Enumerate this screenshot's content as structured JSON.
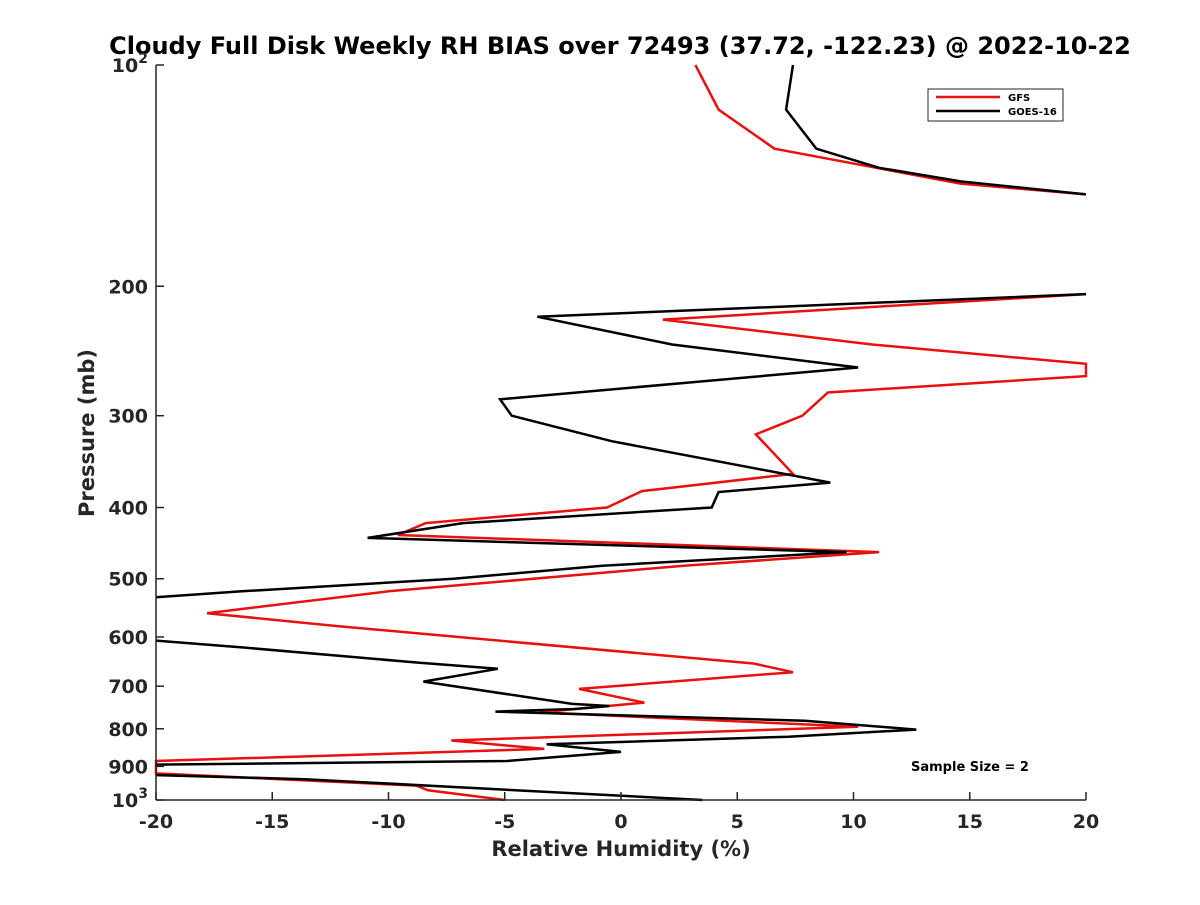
{
  "chart_data": {
    "type": "line",
    "title": "Cloudy Full Disk Weekly RH BIAS over 72493 (37.72, -122.23) @ 2022-10-22",
    "xlabel": "Relative Humidity (%)",
    "ylabel": "Pressure (mb)",
    "xlim": [
      -20,
      20
    ],
    "ylim": [
      100,
      1000
    ],
    "y_scale": "log",
    "y_reversed": true,
    "x_ticks": [
      "-20",
      "-15",
      "-10",
      "-5",
      "0",
      "5",
      "10",
      "15",
      "20"
    ],
    "y_ticks": [
      {
        "value": 100,
        "base": "10",
        "exp": "2"
      },
      {
        "value": 200,
        "label": "200"
      },
      {
        "value": 300,
        "label": "300"
      },
      {
        "value": 400,
        "label": "400"
      },
      {
        "value": 500,
        "label": "500"
      },
      {
        "value": 600,
        "label": "600"
      },
      {
        "value": 700,
        "label": "700"
      },
      {
        "value": 800,
        "label": "800"
      },
      {
        "value": 900,
        "label": "900"
      },
      {
        "value": 1000,
        "base": "10",
        "exp": "3"
      }
    ],
    "grid": false,
    "legend_position": "top-right",
    "annotation": "Sample Size = 2",
    "series": [
      {
        "name": "GFS",
        "color": "#e8110f",
        "points": [
          [
            3.2,
            100
          ],
          [
            4.2,
            115
          ],
          [
            6.6,
            130
          ],
          [
            14.6,
            145
          ],
          [
            20,
            150
          ],
          [
            null,
            null
          ],
          [
            20,
            205
          ],
          [
            1.8,
            222
          ],
          [
            10.8,
            240
          ],
          [
            20,
            255
          ],
          [
            20,
            265
          ],
          [
            8.9,
            279
          ],
          [
            7.8,
            300
          ],
          [
            5.8,
            318
          ],
          [
            7.4,
            360
          ],
          [
            0.9,
            380
          ],
          [
            -0.6,
            400
          ],
          [
            -8.4,
            420
          ],
          [
            -9.6,
            436
          ],
          [
            11.1,
            460
          ],
          [
            2.7,
            480
          ],
          [
            -10.0,
            520
          ],
          [
            -17.8,
            557
          ],
          [
            -12.2,
            580
          ],
          [
            5.7,
            652
          ],
          [
            7.4,
            670
          ],
          [
            -1.8,
            706
          ],
          [
            1.0,
            737
          ],
          [
            -3.5,
            760
          ],
          [
            10.2,
            795
          ],
          [
            -7.3,
            830
          ],
          [
            -3.3,
            852
          ],
          [
            -20,
            885
          ],
          [
            -20,
            920
          ],
          [
            -8.8,
            956
          ],
          [
            -8.3,
            970
          ],
          [
            -5,
            1000
          ]
        ]
      },
      {
        "name": "GOES-16",
        "color": "#000000",
        "points": [
          [
            7.4,
            100
          ],
          [
            7.1,
            115
          ],
          [
            8.4,
            130
          ],
          [
            11.1,
            138
          ],
          [
            14.6,
            144
          ],
          [
            20,
            150
          ],
          [
            null,
            null
          ],
          [
            20,
            205
          ],
          [
            -3.6,
            220
          ],
          [
            2.2,
            240
          ],
          [
            10.2,
            258
          ],
          [
            -5.2,
            285
          ],
          [
            -4.7,
            300
          ],
          [
            -0.4,
            325
          ],
          [
            9.0,
            370
          ],
          [
            4.2,
            381
          ],
          [
            3.9,
            400
          ],
          [
            -6.8,
            420
          ],
          [
            -10.9,
            440
          ],
          [
            9.7,
            460
          ],
          [
            -0.8,
            480
          ],
          [
            -7.2,
            500
          ],
          [
            -16.3,
            520
          ],
          [
            -20,
            530
          ],
          [
            null,
            null
          ],
          [
            -20,
            607
          ],
          [
            -16.3,
            620
          ],
          [
            -8.8,
            650
          ],
          [
            -5.3,
            663
          ],
          [
            -8.5,
            690
          ],
          [
            -2.1,
            740
          ],
          [
            -0.5,
            745
          ],
          [
            -2.0,
            752
          ],
          [
            -5.4,
            758
          ],
          [
            7.9,
            780
          ],
          [
            12.7,
            802
          ],
          [
            7.2,
            820
          ],
          [
            -3.2,
            840
          ],
          [
            0.0,
            860
          ],
          [
            -4.9,
            885
          ],
          [
            -20,
            895
          ],
          [
            null,
            null
          ],
          [
            -20,
            925
          ],
          [
            -13.6,
            937
          ],
          [
            3.5,
            1000
          ]
        ]
      }
    ]
  }
}
